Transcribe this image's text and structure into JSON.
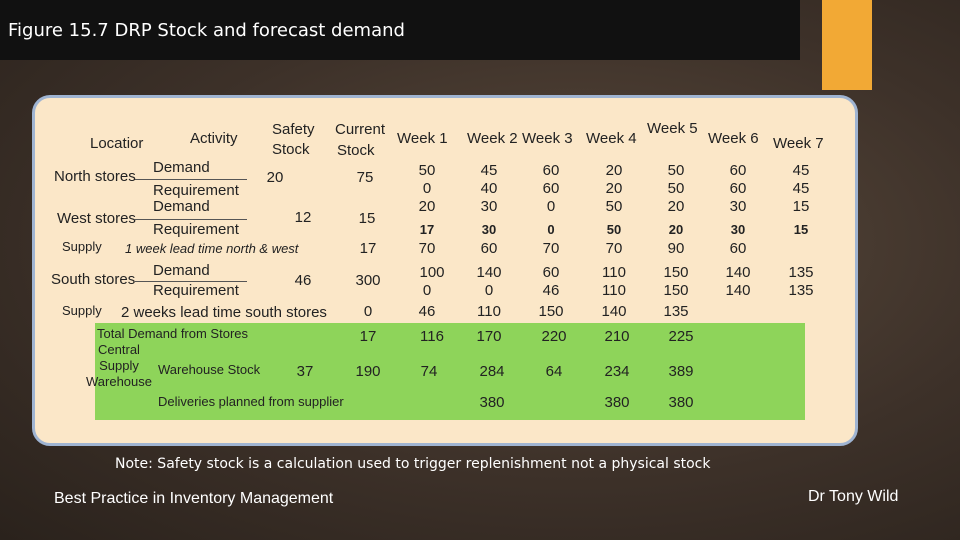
{
  "title": "Figure 15.7  DRP Stock and forecast demand",
  "header": {
    "location": "Locatior",
    "activity": "Activity",
    "safety_1": "Safety",
    "safety_2": "Stock",
    "current_1": "Current",
    "current_2": "Stock",
    "weeks": [
      "Week 1",
      "Week 2",
      "Week 3",
      "Week 4",
      "Week 5",
      "Week 6",
      "Week 7"
    ]
  },
  "north": {
    "location": "North stores",
    "demand": "Demand",
    "requirement": "Requirement",
    "safety": "20",
    "current": "75",
    "demand_vals": [
      "50",
      "45",
      "60",
      "20",
      "50",
      "60",
      "45"
    ],
    "req_a": [
      "0",
      "40",
      "60",
      "20",
      "50",
      "60",
      "45"
    ],
    "req_b": [
      "20",
      "30",
      "0",
      "50",
      "20",
      "30",
      "15"
    ]
  },
  "west": {
    "location": "West stores",
    "demand": "Demand",
    "requirement": "Requirement",
    "safety": "12",
    "current": "15",
    "demand_vals": [
      "17",
      "30",
      "0",
      "50",
      "20",
      "30",
      "15"
    ]
  },
  "supply_nw": {
    "label": "Supply",
    "desc": "1 week lead time north & west",
    "current": "17",
    "vals": [
      "70",
      "60",
      "70",
      "70",
      "90",
      "60"
    ]
  },
  "south": {
    "location": "South stores",
    "demand": "Demand",
    "requirement": "Requirement",
    "safety": "46",
    "current": "300",
    "demand_vals": [
      "100",
      "140",
      "60",
      "110",
      "150",
      "140",
      "135"
    ],
    "req_vals": [
      "0",
      "0",
      "46",
      "110",
      "150",
      "140",
      "135"
    ]
  },
  "supply_s": {
    "label": "Supply",
    "desc": "2 weeks lead time south stores",
    "current": "0",
    "vals": [
      "46",
      "110",
      "150",
      "140",
      "135"
    ]
  },
  "total_demand": {
    "label": "Total Demand from Stores",
    "current": "17",
    "vals": [
      "116",
      "170",
      "220",
      "210",
      "225"
    ]
  },
  "central": {
    "label_1": "Central",
    "label_2": "Supply",
    "label_3": "Warehouse",
    "activity": "Warehouse Stock",
    "safety": "37",
    "current": "190",
    "vals": [
      "74",
      "284",
      "64",
      "234",
      "389"
    ]
  },
  "deliveries": {
    "label": "Deliveries planned from supplier",
    "vals": [
      "380",
      "380",
      "380"
    ]
  },
  "note": "Note: Safety stock is a calculation used to trigger replenishment not a physical stock",
  "footer_left": "Best Practice in Inventory Management",
  "footer_right": "Dr Tony Wild"
}
